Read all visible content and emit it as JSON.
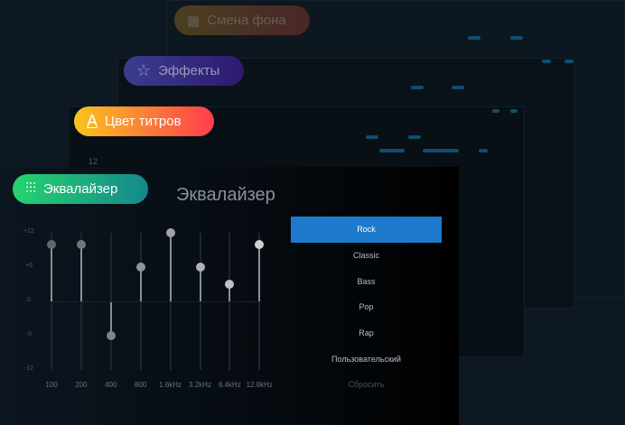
{
  "cards": [
    {
      "label": "Смена фона",
      "icon": "background-pattern-icon"
    },
    {
      "label": "Эффекты",
      "icon": "star-effects-icon"
    },
    {
      "label": "Цвет титров",
      "icon": "text-color-icon"
    },
    {
      "label": "Эквалайзер",
      "icon": "equalizer-sliders-icon"
    }
  ],
  "bg_number": "12",
  "equalizer": {
    "title": "Эквалайзер",
    "chart_data": {
      "type": "bar",
      "categories": [
        "100",
        "200",
        "400",
        "800",
        "1.6kHz",
        "3.2kHz",
        "6.4kHz",
        "12.8kHz"
      ],
      "values": [
        10,
        10,
        -6,
        6,
        12,
        6,
        3,
        10
      ],
      "ylim": [
        -12,
        12
      ],
      "yticks": [
        "+12",
        "+6",
        "0",
        "-6",
        "-12"
      ]
    },
    "presets": [
      "Rock",
      "Classic",
      "Bass",
      "Pop",
      "Rap",
      "Пользовательский",
      "Сбросить"
    ],
    "selected": "Rock",
    "accent": "#1d7acd"
  }
}
